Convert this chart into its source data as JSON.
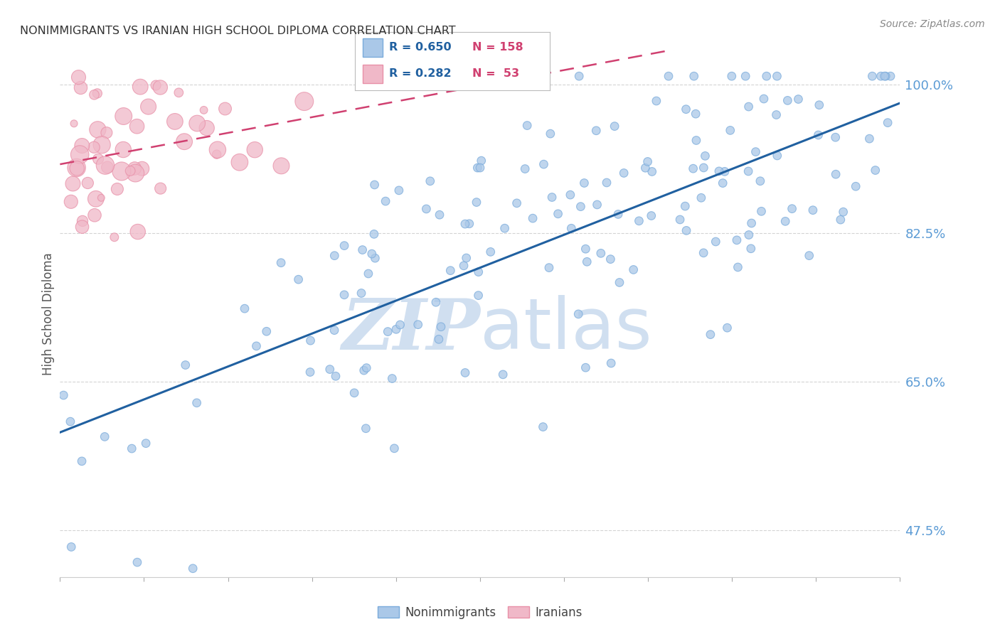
{
  "title": "NONIMMIGRANTS VS IRANIAN HIGH SCHOOL DIPLOMA CORRELATION CHART",
  "source": "Source: ZipAtlas.com",
  "ylabel": "High School Diploma",
  "xlim": [
    0.0,
    1.0
  ],
  "ylim": [
    0.42,
    1.04
  ],
  "yticks": [
    0.475,
    0.65,
    0.825,
    1.0
  ],
  "ytick_labels": [
    "47.5%",
    "65.0%",
    "82.5%",
    "100.0%"
  ],
  "legend_blue_r": "0.650",
  "legend_blue_n": "158",
  "legend_pink_r": "0.282",
  "legend_pink_n": " 53",
  "blue_fill_color": "#aac8e8",
  "pink_fill_color": "#f0b8c8",
  "blue_edge_color": "#7aabdb",
  "pink_edge_color": "#e890a8",
  "blue_line_color": "#2060a0",
  "pink_line_color": "#d04070",
  "title_color": "#333333",
  "tick_color": "#5b9bd5",
  "grid_color": "#d0d0d0",
  "watermark_color": "#d0dff0",
  "background_color": "#ffffff",
  "figsize": [
    14.06,
    8.92
  ],
  "dpi": 100,
  "blue_n": 158,
  "pink_n": 53,
  "blue_seed": 12345,
  "pink_seed": 99
}
